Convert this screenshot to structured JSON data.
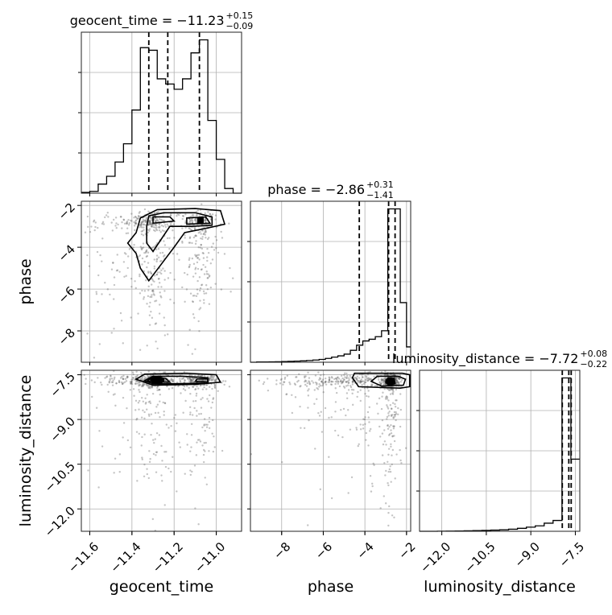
{
  "chart_data": {
    "type": "corner",
    "parameters": [
      "geocent_time",
      "phase",
      "luminosity_distance"
    ],
    "axis_labels": {
      "geocent_time": "geocent_time",
      "phase": "phase",
      "luminosity_distance": "luminosity_distance"
    },
    "ranges": {
      "geocent_time": [
        -11.64,
        -10.88
      ],
      "phase": [
        -9.5,
        -1.8
      ],
      "luminosity_distance": [
        -12.75,
        -7.35
      ]
    },
    "ticks": {
      "geocent_time": [
        -11.6,
        -11.4,
        -11.2,
        -11.0
      ],
      "phase": [
        -8,
        -6,
        -4,
        -2
      ],
      "luminosity_distance": [
        -12.0,
        -10.5,
        -9.0,
        -7.5
      ]
    },
    "tick_labels": {
      "geocent_time": [
        "−11.6",
        "−11.4",
        "−11.2",
        "−11.0"
      ],
      "phase": [
        "−8",
        "−6",
        "−4",
        "−2"
      ],
      "luminosity_distance": [
        "−12.0",
        "−10.5",
        "−9.0",
        "−7.5"
      ]
    },
    "titles": {
      "geocent_time": {
        "prefix": "geocent_time = −11.23",
        "upper": "+0.15",
        "lower": "−0.09"
      },
      "phase": {
        "prefix": "phase = −2.86",
        "upper": "+0.31",
        "lower": "−1.41"
      },
      "luminosity_distance": {
        "prefix": "luminosity_distance = −7.72",
        "upper": "+0.08",
        "lower": "−0.22"
      }
    },
    "quantiles": {
      "geocent_time": [
        -11.32,
        -11.23,
        -11.08
      ],
      "phase": [
        -4.27,
        -2.86,
        -2.55
      ],
      "luminosity_distance": [
        -7.94,
        -7.72,
        -7.64
      ]
    },
    "histograms": {
      "geocent_time": {
        "edges": [
          -11.64,
          -11.6,
          -11.56,
          -11.52,
          -11.48,
          -11.44,
          -11.4,
          -11.36,
          -11.32,
          -11.28,
          -11.24,
          -11.2,
          -11.16,
          -11.12,
          -11.08,
          -11.04,
          -11.0,
          -10.96,
          -10.92,
          -10.88
        ],
        "counts": [
          0.3,
          0.7,
          3.5,
          6.5,
          12,
          19,
          32,
          56,
          55,
          44,
          42,
          40,
          44,
          54,
          59,
          28,
          13,
          1.8,
          0
        ]
      },
      "phase": {
        "edges": [
          -9.5,
          -9.2,
          -8.9,
          -8.6,
          -8.3,
          -8.0,
          -7.7,
          -7.4,
          -7.1,
          -6.8,
          -6.5,
          -6.2,
          -5.9,
          -5.6,
          -5.3,
          -5.0,
          -4.7,
          -4.4,
          -4.1,
          -3.8,
          -3.5,
          -3.2,
          -2.9,
          -2.6,
          -2.3,
          -2.0,
          -1.8
        ],
        "counts": [
          0,
          0.3,
          0.3,
          0.5,
          0.6,
          0.8,
          1,
          1.3,
          1.6,
          2,
          2.6,
          3.3,
          4.5,
          6,
          7.5,
          9.5,
          14,
          20,
          25,
          27,
          30,
          37,
          180,
          180,
          70,
          18
        ]
      },
      "luminosity_distance": {
        "edges": [
          -12.75,
          -12.45,
          -12.15,
          -11.85,
          -11.55,
          -11.25,
          -10.95,
          -10.65,
          -10.35,
          -10.05,
          -9.75,
          -9.45,
          -9.15,
          -8.85,
          -8.55,
          -8.25,
          -7.95,
          -7.65,
          -7.35
        ],
        "counts": [
          0,
          0,
          0.1,
          0.2,
          0.3,
          0.5,
          0.8,
          1,
          1.3,
          1.6,
          2.3,
          3.3,
          4.6,
          6,
          9,
          12,
          170,
          80
        ]
      }
    },
    "grid": true
  }
}
